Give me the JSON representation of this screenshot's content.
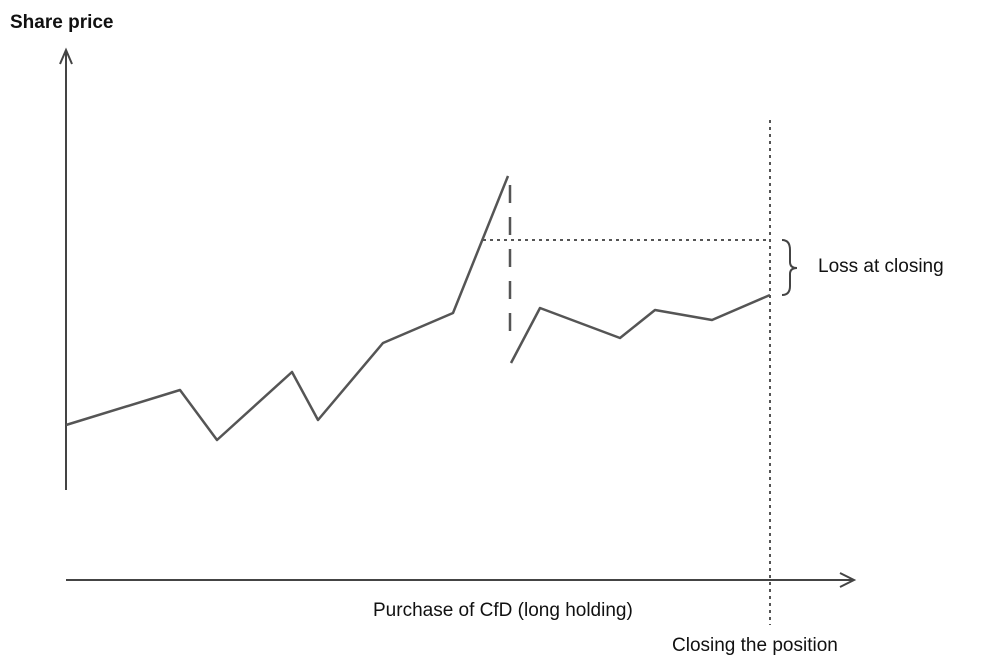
{
  "labels": {
    "y_axis": "Share price",
    "loss": "Loss at closing",
    "purchase": "Purchase of CfD (long holding)",
    "closing": "Closing the position"
  }
}
